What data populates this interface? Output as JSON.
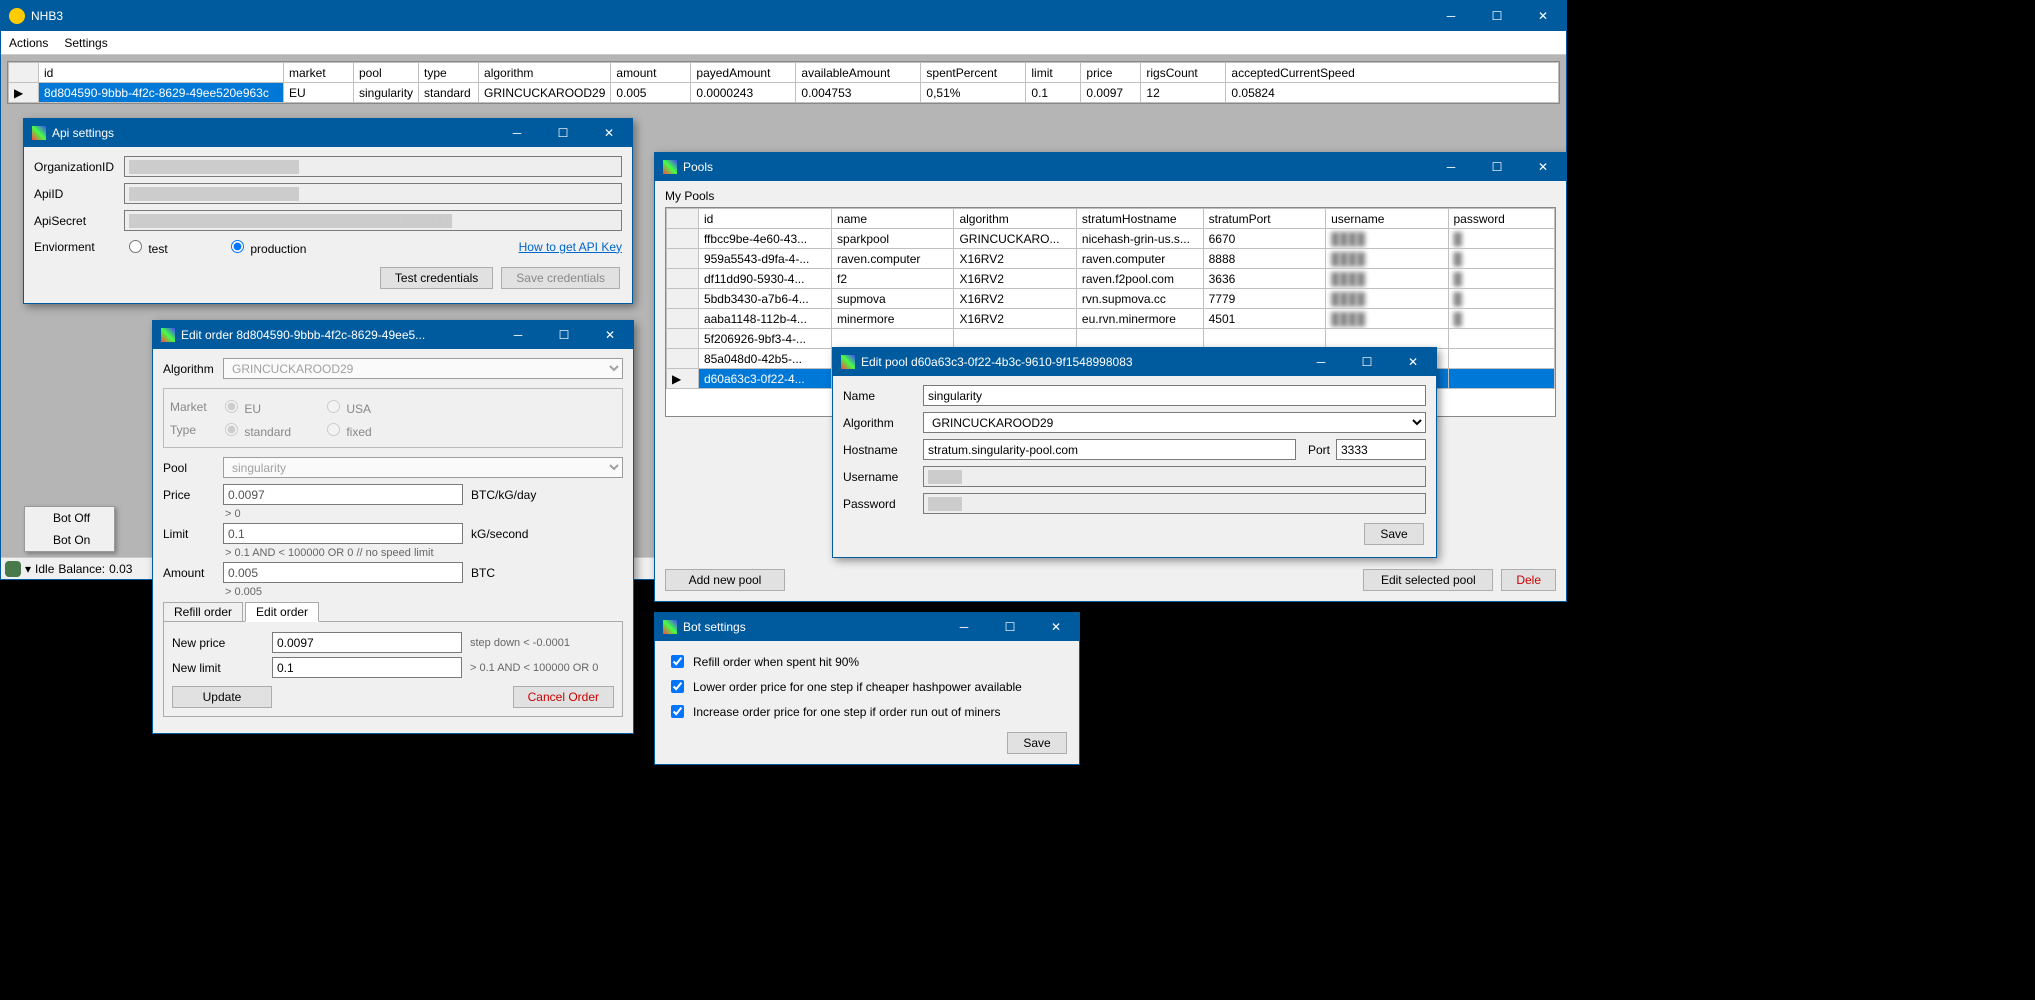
{
  "mainWindow": {
    "title": "NHB3",
    "menu": {
      "actions": "Actions",
      "settings": "Settings"
    },
    "statusbar": {
      "idle": "Idle",
      "balanceLabel": "Balance:",
      "balanceValue": "0.03"
    },
    "contextMenu": {
      "botOff": "Bot Off",
      "botOn": "Bot On"
    }
  },
  "ordersGrid": {
    "headers": [
      "id",
      "market",
      "pool",
      "type",
      "algorithm",
      "amount",
      "payedAmount",
      "availableAmount",
      "spentPercent",
      "limit",
      "price",
      "rigsCount",
      "acceptedCurrentSpeed"
    ],
    "row": [
      "8d804590-9bbb-4f2c-8629-49ee520e963c",
      "EU",
      "singularity",
      "standard",
      "GRINCUCKAROOD29",
      "0.005",
      "0.0000243",
      "0.004753",
      "0,51%",
      "0.1",
      "0.0097",
      "12",
      "0.05824"
    ]
  },
  "apiSettings": {
    "title": "Api settings",
    "labels": {
      "org": "OrganizationID",
      "apiId": "ApiID",
      "apiSecret": "ApiSecret",
      "env": "Enviorment"
    },
    "env": {
      "test": "test",
      "production": "production"
    },
    "howToLink": "How to get API Key",
    "buttons": {
      "test": "Test credentials",
      "save": "Save credentials"
    }
  },
  "editOrder": {
    "title": "Edit order 8d804590-9bbb-4f2c-8629-49ee5...",
    "labels": {
      "algorithm": "Algorithm",
      "market": "Market",
      "type": "Type",
      "pool": "Pool",
      "price": "Price",
      "limit": "Limit",
      "amount": "Amount",
      "newPrice": "New price",
      "newLimit": "New limit"
    },
    "values": {
      "algorithm": "GRINCUCKAROOD29",
      "pool": "singularity",
      "price": "0.0097",
      "limit": "0.1",
      "amount": "0.005",
      "newPrice": "0.0097",
      "newLimit": "0.1"
    },
    "market": {
      "eu": "EU",
      "usa": "USA"
    },
    "type": {
      "standard": "standard",
      "fixed": "fixed"
    },
    "units": {
      "price": "BTC/kG/day",
      "limit": "kG/second",
      "amount": "BTC"
    },
    "hints": {
      "priceHint": "> 0",
      "limitHint": "> 0.1 AND < 100000 OR 0 // no speed limit",
      "amountHint": "> 0.005",
      "newPriceHint": "step down < -0.0001",
      "newLimitHint": "> 0.1 AND < 100000 OR 0"
    },
    "tabs": {
      "refill": "Refill order",
      "edit": "Edit order"
    },
    "buttons": {
      "update": "Update",
      "cancel": "Cancel Order"
    }
  },
  "pools": {
    "title": "Pools",
    "myPools": "My Pools",
    "headers": [
      "id",
      "name",
      "algorithm",
      "stratumHostname",
      "stratumPort",
      "username",
      "password"
    ],
    "rows": [
      [
        "ffbcc9be-4e60-43...",
        "sparkpool",
        "GRINCUCKARO...",
        "nicehash-grin-us.s...",
        "6670",
        "████",
        "█"
      ],
      [
        "959a5543-d9fa-4-...",
        "raven.computer",
        "X16RV2",
        "raven.computer",
        "8888",
        "████",
        "█"
      ],
      [
        "df11dd90-5930-4...",
        "f2",
        "X16RV2",
        "raven.f2pool.com",
        "3636",
        "████",
        "█"
      ],
      [
        "5bdb3430-a7b6-4...",
        "supmova",
        "X16RV2",
        "rvn.supmova.cc",
        "7779",
        "████",
        "█"
      ],
      [
        "aaba1148-112b-4...",
        "minermore",
        "X16RV2",
        "eu.rvn.minermore",
        "4501",
        "████",
        "█"
      ],
      [
        "5f206926-9bf3-4-...",
        "",
        "",
        "",
        "",
        "",
        ""
      ],
      [
        "85a048d0-42b5-...",
        "",
        "",
        "",
        "",
        "",
        ""
      ],
      [
        "d60a63c3-0f22-4...",
        "",
        "",
        "",
        "",
        "",
        ""
      ]
    ],
    "buttons": {
      "add": "Add new pool",
      "edit": "Edit selected pool",
      "del": "Dele"
    }
  },
  "editPool": {
    "title": "Edit pool d60a63c3-0f22-4b3c-9610-9f1548998083",
    "labels": {
      "name": "Name",
      "algorithm": "Algorithm",
      "hostname": "Hostname",
      "port": "Port",
      "username": "Username",
      "password": "Password"
    },
    "values": {
      "name": "singularity",
      "algorithm": "GRINCUCKAROOD29",
      "hostname": "stratum.singularity-pool.com",
      "port": "3333"
    },
    "buttons": {
      "save": "Save"
    }
  },
  "botSettings": {
    "title": "Bot settings",
    "checks": {
      "refill": "Refill order when spent hit 90%",
      "lower": "Lower order price for one step if cheaper hashpower available",
      "increase": "Increase order price for one step if order run out of miners"
    },
    "buttons": {
      "save": "Save"
    }
  },
  "colors": {
    "accent": "#005a9e",
    "selection": "#0078d7"
  }
}
